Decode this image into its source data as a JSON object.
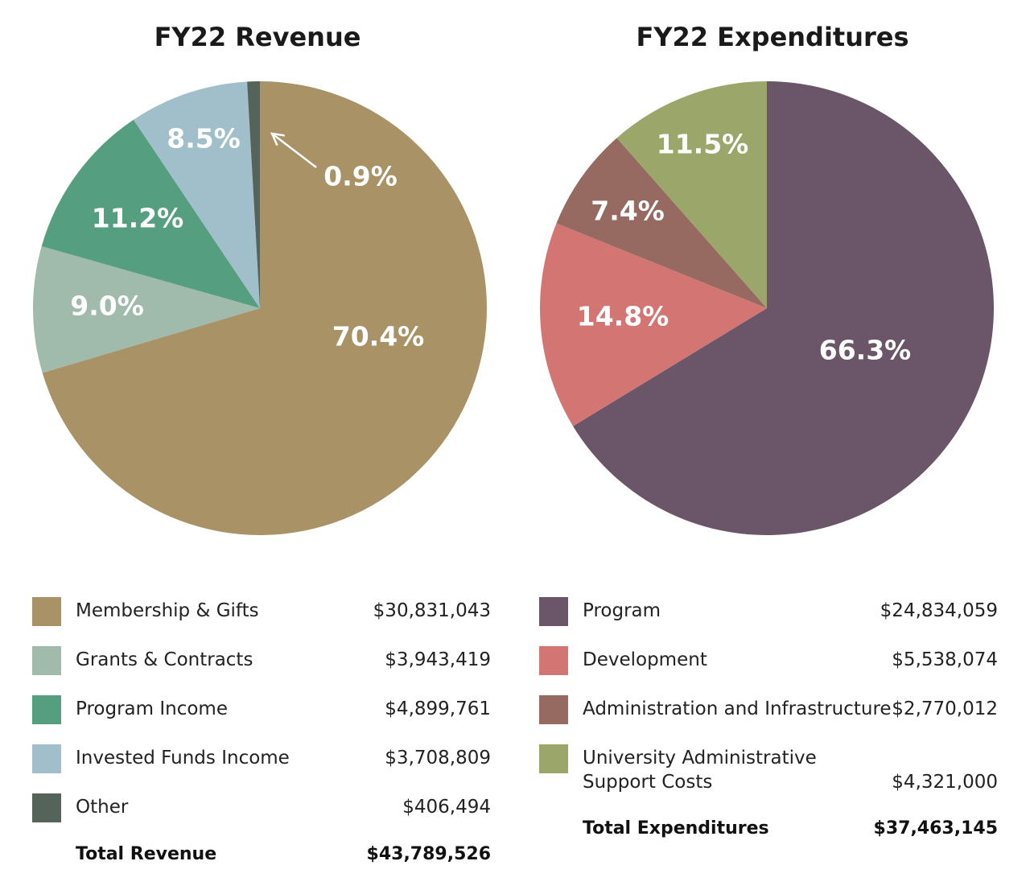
{
  "chart_data": [
    {
      "type": "pie",
      "title": "FY22 Revenue",
      "slices": [
        {
          "label": "Membership & Gifts",
          "percent_label": "70.4%",
          "percent": 70.4,
          "amount": "$30,831,043",
          "color": "#a89266"
        },
        {
          "label": "Grants & Contracts",
          "percent_label": "9.0%",
          "percent": 9.0,
          "amount": "$3,943,419",
          "color": "#a0bbac"
        },
        {
          "label": "Program Income",
          "percent_label": "11.2%",
          "percent": 11.2,
          "amount": "$4,899,761",
          "color": "#559e80"
        },
        {
          "label": "Invested Funds Income",
          "percent_label": "8.5%",
          "percent": 8.5,
          "amount": "$3,708,809",
          "color": "#a0bfca"
        },
        {
          "label": "Other",
          "percent_label": "0.9%",
          "percent": 0.9,
          "amount": "$406,494",
          "color": "#55645a"
        }
      ],
      "total_label": "Total Revenue",
      "total_value": "$43,789,526"
    },
    {
      "type": "pie",
      "title": "FY22 Expenditures",
      "slices": [
        {
          "label": "Program",
          "percent_label": "66.3%",
          "percent": 66.3,
          "amount": "$24,834,059",
          "color": "#6a5569"
        },
        {
          "label": "Development",
          "percent_label": "14.8%",
          "percent": 14.8,
          "amount": "$5,538,074",
          "color": "#d37673"
        },
        {
          "label": "Administration and Infrastructure",
          "percent_label": "7.4%",
          "percent": 7.4,
          "amount": "$2,770,012",
          "color": "#966961"
        },
        {
          "label": "University Administrative\nSupport Costs",
          "percent_label": "11.5%",
          "percent": 11.5,
          "amount": "$4,321,000",
          "color": "#9aa66a"
        }
      ],
      "total_label": "Total Expenditures",
      "total_value": "$37,463,145"
    }
  ]
}
